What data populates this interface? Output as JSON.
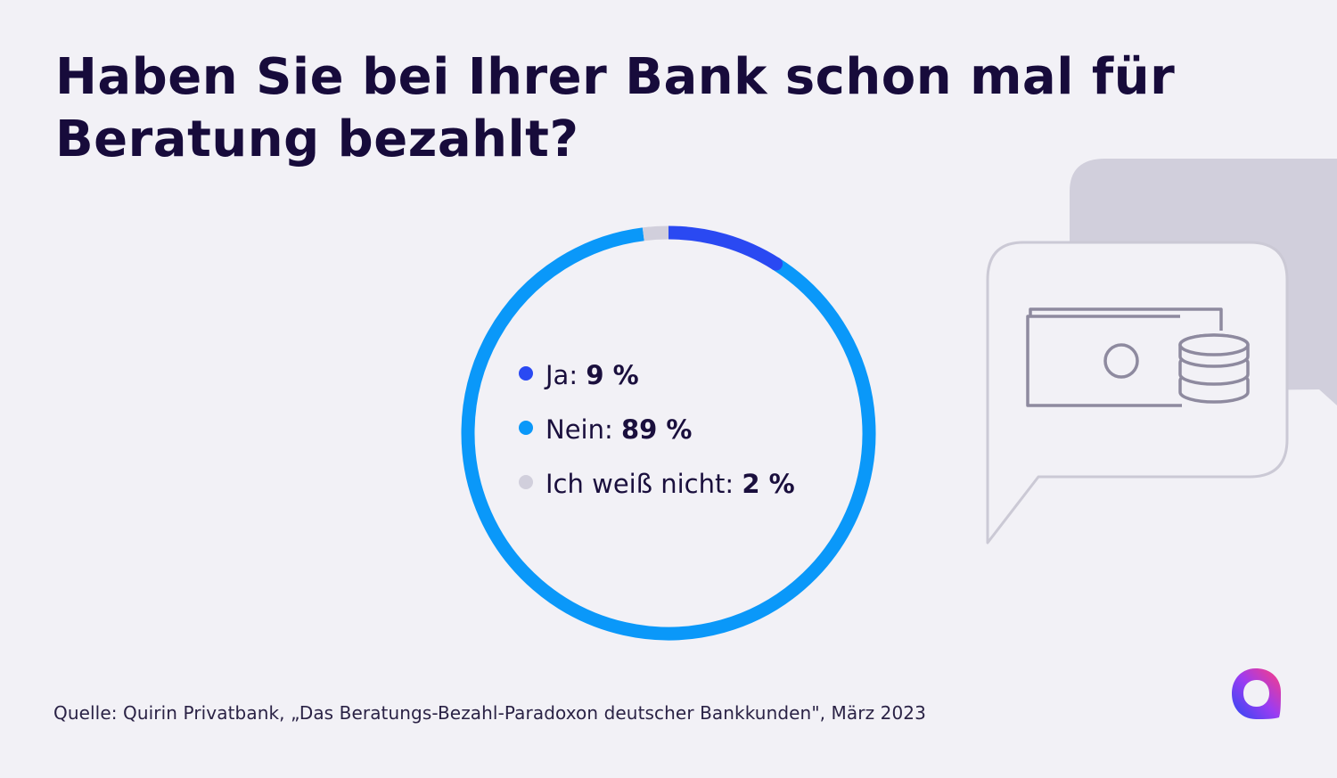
{
  "title_line1": "Haben Sie bei Ihrer Bank schon mal für",
  "title_line2": "Beratung bezahlt?",
  "source": "Quelle: Quirin Privatbank, „Das Beratungs-Bezahl-Paradoxon deutscher Bankkunden\", März 2023",
  "colors": {
    "ja": "#2a49f2",
    "nein": "#0a98f9",
    "unknown": "#d1cfdc",
    "background": "#f2f1f6",
    "illustration_back": "#d1cfdc",
    "illustration_line": "#8e8a9f"
  },
  "icons": [
    "speech-bubble-icon",
    "banknote-icon",
    "coin-stack-icon",
    "brand-logo-icon"
  ],
  "chart_data": {
    "type": "pie",
    "variant": "donut",
    "title": "Haben Sie bei Ihrer Bank schon mal für Beratung bezahlt?",
    "unit": "%",
    "slices": [
      {
        "label": "Ja",
        "legend_label": "Ja:",
        "value": 9,
        "display": "9 %",
        "color": "#2a49f2"
      },
      {
        "label": "Nein",
        "legend_label": "Nein:",
        "value": 89,
        "display": "89 %",
        "color": "#0a98f9"
      },
      {
        "label": "Ich weiß nicht",
        "legend_label": "Ich weiß nicht:",
        "value": 2,
        "display": "2 %",
        "color": "#d1cfdc"
      }
    ],
    "start_angle": "top",
    "direction": "clockwise",
    "legend_position": "inside"
  }
}
